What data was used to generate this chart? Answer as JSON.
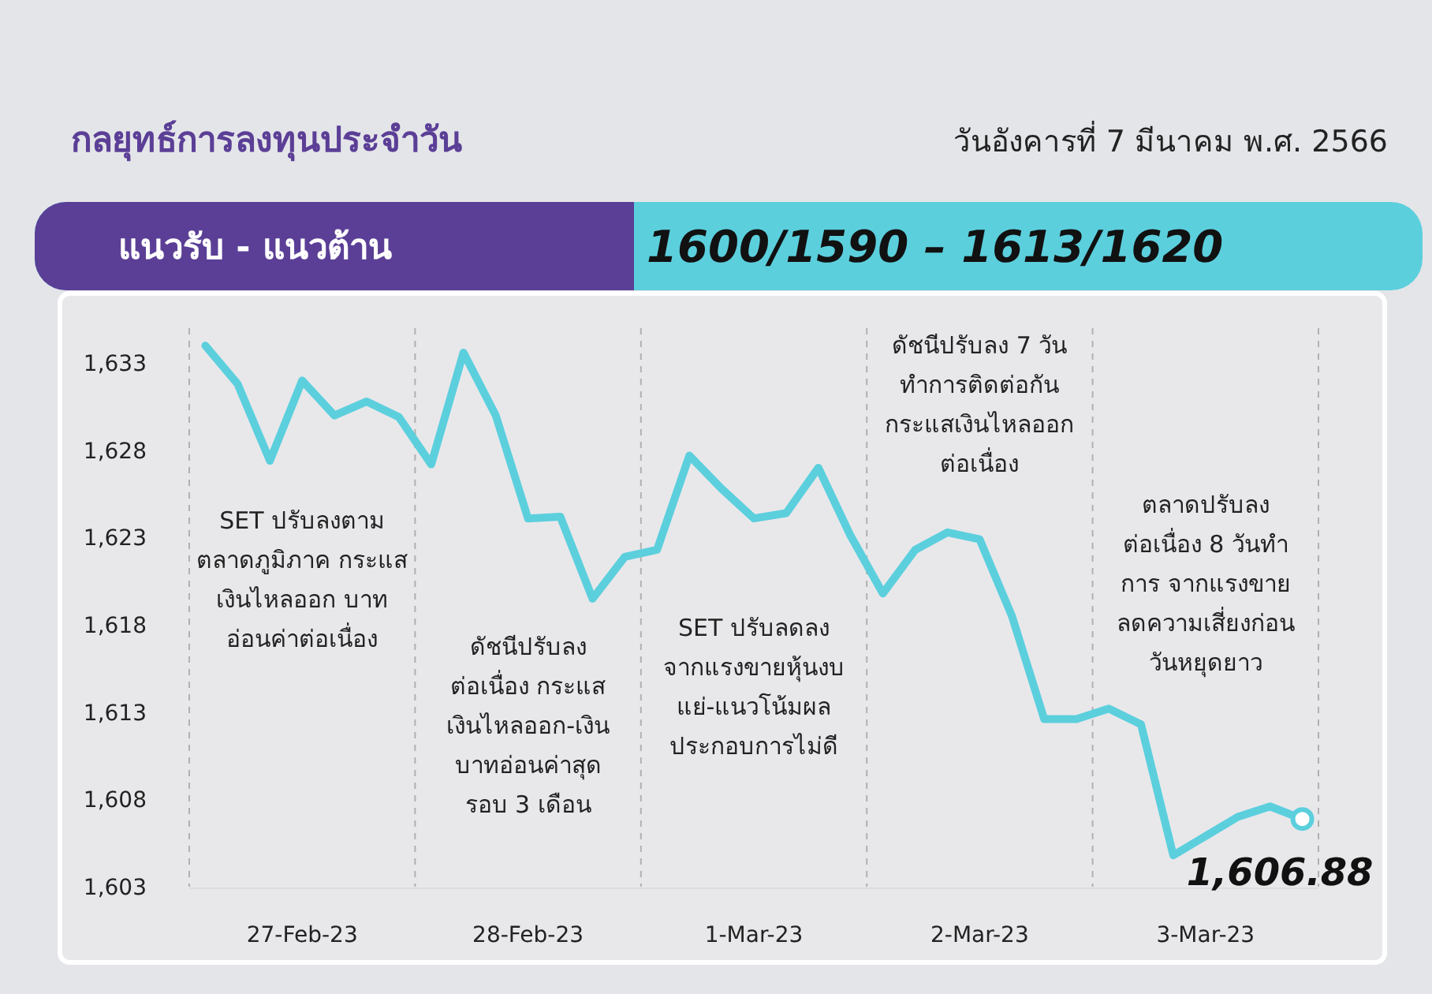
{
  "chart_data": {
    "type": "line",
    "title": "กลยุทธ์การลงทุนประจำวัน",
    "subtitle": "วันอังคารที่ 7 มีนาคม พ.ศ. 2566",
    "categories": [
      null,
      null,
      null,
      "27-Feb-23",
      null,
      null,
      null,
      null,
      null,
      null,
      "28-Feb-23",
      null,
      null,
      null,
      null,
      null,
      null,
      "1-Mar-23",
      null,
      null,
      null,
      null,
      null,
      null,
      "2-Mar-23",
      null,
      null,
      null,
      null,
      null,
      null,
      "3-Mar-23",
      null,
      null,
      null
    ],
    "series": [
      {
        "color": "#5ccfdd",
        "values": [
          1634.0,
          1631.8,
          1627.4,
          1632.0,
          1630.0,
          1630.8,
          1629.9,
          1627.2,
          1633.6,
          1630.0,
          1624.1,
          1624.2,
          1619.5,
          1621.9,
          1622.3,
          1627.7,
          1625.8,
          1624.1,
          1624.4,
          1627.0,
          1623.1,
          1619.8,
          1622.3,
          1623.3,
          1622.9,
          1618.5,
          1612.6,
          1612.6,
          1613.2,
          1612.3,
          1604.8,
          1605.9,
          1607.0,
          1607.6,
          1606.88
        ]
      }
    ],
    "ylim": [
      1603,
      1635
    ],
    "yticks": [
      {
        "value": 1603,
        "label": "1,603"
      },
      {
        "value": 1608,
        "label": "1,608"
      },
      {
        "value": 1613,
        "label": "1,613"
      },
      {
        "value": 1618,
        "label": "1,618"
      },
      {
        "value": 1623,
        "label": "1,623"
      },
      {
        "value": 1628,
        "label": "1,628"
      },
      {
        "value": 1633,
        "label": "1,633"
      }
    ],
    "grid": false,
    "marker": "none",
    "line_style": "solid",
    "annotations": [
      "แนวรับ - แนวต้าน",
      "1600/1590 – 1613/1620",
      "SET ปรับลงตาม\nตลาดภูมิภาค กระแส\nเงินไหลออก บาท\nอ่อนค่าต่อเนื่อง",
      "ดัชนีปรับลง\nต่อเนื่อง กระแส\nเงินไหลออก-เงิน\nบาทอ่อนค่าสุด\nรอบ 3 เดือน",
      "SET ปรับลดลง\nจากแรงขายหุ้นงบ\nแย่-แนวโน้มผล\nประกอบการไม่ดี",
      "ดัชนีปรับลง 7 วัน\nทำการติดต่อกัน\nกระแสเงินไหลออก\nต่อเนื่อง",
      "ตลาดปรับลง\nต่อเนื่อง 8 วันทำ\nการ จากแรงขาย\nลดความเสี่ยงก่อน\nวันหยุดยาว",
      {
        "text": "1,606.88",
        "y": 1606.88
      }
    ]
  }
}
